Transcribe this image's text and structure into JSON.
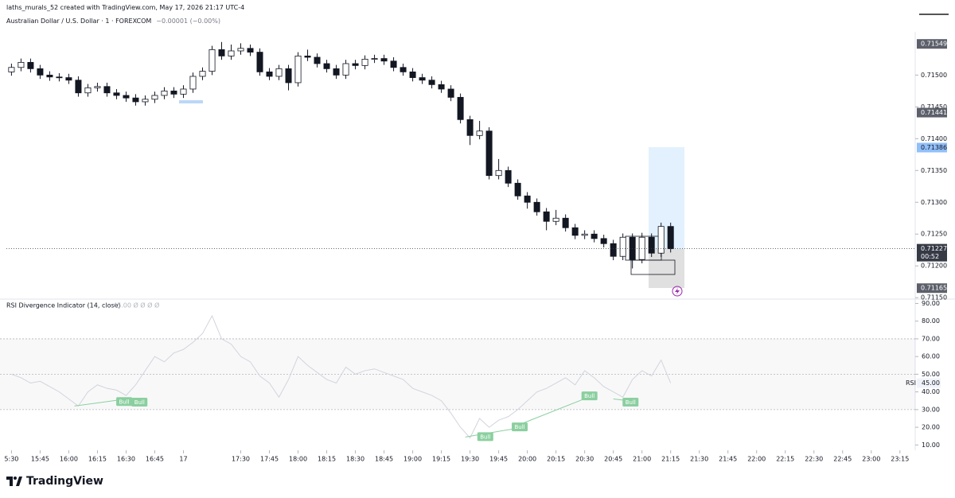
{
  "header": {
    "attribution": "laths_murals_52 created with TradingView.com, May 17, 2026 21:17 UTC-4",
    "symbol": "Australian Dollar / U.S. Dollar · 1 · FOREXCOM",
    "change": "−0.00001 (−0.00%)"
  },
  "chart_data": [
    {
      "type": "candlestick",
      "x": [
        0,
        5,
        10,
        15,
        20,
        25,
        30,
        35,
        40,
        45,
        50,
        55,
        60,
        65,
        70,
        75,
        80,
        85,
        90,
        95,
        100,
        105,
        110,
        115,
        120,
        125,
        130,
        135,
        140,
        145,
        150,
        155,
        160,
        165,
        170,
        175,
        180,
        185,
        190,
        195,
        200,
        205,
        210,
        215,
        220,
        225,
        230,
        235,
        240,
        245,
        250,
        255,
        260,
        265,
        270,
        275,
        280,
        285,
        290,
        295,
        300,
        305,
        310,
        315,
        320,
        325,
        330,
        335,
        340,
        345
      ],
      "open": [
        0.71505,
        0.71512,
        0.7152,
        0.7151,
        0.715,
        0.71497,
        0.71496,
        0.71492,
        0.71472,
        0.7148,
        0.71482,
        0.71472,
        0.71468,
        0.71464,
        0.71458,
        0.71462,
        0.71468,
        0.71475,
        0.7147,
        0.71478,
        0.71498,
        0.71506,
        0.7154,
        0.7153,
        0.71538,
        0.71542,
        0.71536,
        0.71505,
        0.71498,
        0.7151,
        0.71488,
        0.7153,
        0.71528,
        0.71518,
        0.7151,
        0.715,
        0.71518,
        0.71515,
        0.71525,
        0.71526,
        0.71522,
        0.71512,
        0.71505,
        0.71496,
        0.71492,
        0.71485,
        0.71478,
        0.71465,
        0.7143,
        0.71405,
        0.71412,
        0.71342,
        0.7135,
        0.7133,
        0.7131,
        0.713,
        0.71285,
        0.7127,
        0.71275,
        0.7126,
        0.71248,
        0.7125,
        0.71243,
        0.71235,
        0.71215,
        0.71245,
        0.7121,
        0.71245,
        0.7122,
        0.71262
      ],
      "high": [
        0.71518,
        0.71526,
        0.71526,
        0.71516,
        0.71506,
        0.71503,
        0.71502,
        0.71498,
        0.71486,
        0.71488,
        0.71488,
        0.71478,
        0.71474,
        0.7147,
        0.71468,
        0.71474,
        0.71481,
        0.71481,
        0.71484,
        0.71504,
        0.71512,
        0.71546,
        0.71552,
        0.71548,
        0.7155,
        0.71548,
        0.71542,
        0.71511,
        0.71516,
        0.71516,
        0.71536,
        0.7154,
        0.71534,
        0.71524,
        0.71516,
        0.71524,
        0.71524,
        0.71531,
        0.71532,
        0.71532,
        0.71528,
        0.71518,
        0.71511,
        0.71502,
        0.71498,
        0.71491,
        0.71484,
        0.71471,
        0.71436,
        0.71428,
        0.71418,
        0.71368,
        0.71356,
        0.71336,
        0.71316,
        0.71306,
        0.71291,
        0.71288,
        0.71281,
        0.71266,
        0.71256,
        0.71256,
        0.71249,
        0.71241,
        0.71251,
        0.71251,
        0.71252,
        0.71251,
        0.71268,
        0.71268
      ],
      "low": [
        0.71499,
        0.71506,
        0.71504,
        0.71494,
        0.71491,
        0.7149,
        0.71486,
        0.71466,
        0.71466,
        0.71474,
        0.71466,
        0.71462,
        0.71458,
        0.71452,
        0.71452,
        0.71456,
        0.71462,
        0.71464,
        0.71464,
        0.71472,
        0.71492,
        0.715,
        0.71524,
        0.71524,
        0.71532,
        0.7153,
        0.71499,
        0.71492,
        0.71492,
        0.71476,
        0.71482,
        0.71522,
        0.71512,
        0.71504,
        0.71494,
        0.71494,
        0.71509,
        0.71509,
        0.71519,
        0.71516,
        0.71506,
        0.71499,
        0.7149,
        0.71486,
        0.71479,
        0.71472,
        0.71459,
        0.71424,
        0.7139,
        0.71399,
        0.71336,
        0.71336,
        0.71324,
        0.71304,
        0.7129,
        0.71279,
        0.71256,
        0.71264,
        0.71254,
        0.71242,
        0.71242,
        0.71237,
        0.71229,
        0.71209,
        0.71209,
        0.71196,
        0.71204,
        0.71214,
        0.71214,
        0.71221
      ],
      "close": [
        0.71512,
        0.7152,
        0.7151,
        0.715,
        0.71497,
        0.71496,
        0.71492,
        0.71472,
        0.7148,
        0.71482,
        0.71472,
        0.71468,
        0.71464,
        0.71458,
        0.71462,
        0.71468,
        0.71475,
        0.7147,
        0.71478,
        0.71498,
        0.71506,
        0.7154,
        0.7153,
        0.71538,
        0.71542,
        0.71536,
        0.71505,
        0.71498,
        0.7151,
        0.71488,
        0.7153,
        0.71528,
        0.71518,
        0.7151,
        0.715,
        0.71518,
        0.71515,
        0.71525,
        0.71526,
        0.71522,
        0.71512,
        0.71505,
        0.71496,
        0.71492,
        0.71485,
        0.71478,
        0.71465,
        0.7143,
        0.71405,
        0.71412,
        0.71342,
        0.7135,
        0.7133,
        0.7131,
        0.713,
        0.71285,
        0.7127,
        0.71275,
        0.7126,
        0.71248,
        0.7125,
        0.71243,
        0.71235,
        0.71215,
        0.71245,
        0.7121,
        0.71245,
        0.7122,
        0.71262,
        0.71227
      ],
      "up_color": "#ffffff",
      "down_color": "#131722",
      "wick_color": "#131722",
      "xlim": [
        -6,
        473
      ],
      "ylim": [
        0.71149,
        0.71568
      ],
      "yticks": [
        {
          "value": 0.7115,
          "label": "0.71150"
        },
        {
          "value": 0.712,
          "label": "0.71200"
        },
        {
          "value": 0.7125,
          "label": "0.71250"
        },
        {
          "value": 0.713,
          "label": "0.71300"
        },
        {
          "value": 0.7135,
          "label": "0.71350"
        },
        {
          "value": 0.714,
          "label": "0.71400"
        },
        {
          "value": 0.7145,
          "label": "0.71450"
        },
        {
          "value": 0.715,
          "label": "0.71500"
        }
      ],
      "xticks": [
        {
          "value": 0,
          "label": "5:30"
        },
        {
          "value": 15,
          "label": "15:45"
        },
        {
          "value": 30,
          "label": "16:00"
        },
        {
          "value": 45,
          "label": "16:15"
        },
        {
          "value": 60,
          "label": "16:30"
        },
        {
          "value": 75,
          "label": "16:45"
        },
        {
          "value": 90,
          "label": "17"
        },
        {
          "value": 120,
          "label": "17:30"
        },
        {
          "value": 135,
          "label": "17:45"
        },
        {
          "value": 150,
          "label": "18:00"
        },
        {
          "value": 165,
          "label": "18:15"
        },
        {
          "value": 180,
          "label": "18:30"
        },
        {
          "value": 195,
          "label": "18:45"
        },
        {
          "value": 210,
          "label": "19:00"
        },
        {
          "value": 225,
          "label": "19:15"
        },
        {
          "value": 240,
          "label": "19:30"
        },
        {
          "value": 255,
          "label": "19:45"
        },
        {
          "value": 270,
          "label": "20:00"
        },
        {
          "value": 285,
          "label": "20:15"
        },
        {
          "value": 300,
          "label": "20:30"
        },
        {
          "value": 315,
          "label": "20:45"
        },
        {
          "value": 330,
          "label": "21:00"
        },
        {
          "value": 345,
          "label": "21:15"
        },
        {
          "value": 360,
          "label": "21:30"
        },
        {
          "value": 375,
          "label": "21:45"
        },
        {
          "value": 390,
          "label": "22:00"
        },
        {
          "value": 405,
          "label": "22:15"
        },
        {
          "value": 420,
          "label": "22:30"
        },
        {
          "value": 435,
          "label": "22:45"
        },
        {
          "value": 450,
          "label": "23:00"
        },
        {
          "value": 465,
          "label": "23:15"
        }
      ],
      "price_labels": [
        {
          "value": 0.71549,
          "label": "0.71549",
          "color": "#5d606b"
        },
        {
          "value": 0.71441,
          "label": "0.71441",
          "color": "#5d606b"
        },
        {
          "value": 0.71386,
          "label": "0.71386",
          "color": "#90bff9"
        },
        {
          "value": 0.71227,
          "label": "0.71227",
          "sub": "00:52",
          "color": "#363a45"
        },
        {
          "value": 0.71165,
          "label": "0.71165",
          "color": "#5d606b"
        }
      ]
    },
    {
      "type": "line",
      "title": "RSI Divergence Indicator (14, close)",
      "legend_values": "45.00  Ø  Ø  Ø  Ø",
      "x": [
        0,
        5,
        10,
        15,
        20,
        25,
        30,
        35,
        40,
        45,
        50,
        55,
        60,
        65,
        70,
        75,
        80,
        85,
        90,
        95,
        100,
        105,
        110,
        115,
        120,
        125,
        130,
        135,
        140,
        145,
        150,
        155,
        160,
        165,
        170,
        175,
        180,
        185,
        190,
        195,
        200,
        205,
        210,
        215,
        220,
        225,
        230,
        235,
        240,
        245,
        250,
        255,
        260,
        265,
        270,
        275,
        280,
        285,
        290,
        295,
        300,
        305,
        310,
        315,
        320,
        325,
        330,
        335,
        340,
        345
      ],
      "values": [
        50,
        48,
        45,
        46,
        43,
        40,
        36,
        32,
        40,
        44,
        42,
        41,
        38,
        44,
        52,
        60,
        57,
        62,
        64,
        68,
        73,
        83,
        70,
        67,
        60,
        57,
        49,
        45,
        37,
        47,
        60,
        55,
        51,
        47,
        45,
        54,
        50,
        52,
        53,
        51,
        49,
        47,
        42,
        40,
        38,
        35,
        28,
        20,
        14,
        25,
        20,
        24,
        26,
        30,
        35,
        40,
        42,
        45,
        48,
        44,
        52,
        48,
        43,
        40,
        37,
        47,
        52,
        49,
        58,
        45
      ],
      "color": "#d1d4dc",
      "xlim": [
        -6,
        473
      ],
      "ylim": [
        7,
        92
      ],
      "yticks": [
        {
          "value": 10,
          "label": "10.00"
        },
        {
          "value": 20,
          "label": "20.00"
        },
        {
          "value": 30,
          "label": "30.00"
        },
        {
          "value": 40,
          "label": "40.00"
        },
        {
          "value": 50,
          "label": "50.00"
        },
        {
          "value": 60,
          "label": "60.00"
        },
        {
          "value": 70,
          "label": "70.00"
        },
        {
          "value": 80,
          "label": "80.00"
        },
        {
          "value": 90,
          "label": "90.00"
        }
      ],
      "levels": [
        70,
        50,
        30
      ],
      "last": {
        "name": "RSI",
        "value": 45,
        "label": "45.00"
      },
      "divergences": [
        {
          "x": [
            33,
            60
          ],
          "y": [
            32,
            36
          ]
        },
        {
          "x": [
            237.5,
            265
          ],
          "y": [
            14.5,
            19.5
          ]
        },
        {
          "x": [
            267,
            302
          ],
          "y": [
            22,
            37
          ]
        },
        {
          "x": [
            315,
            323
          ],
          "y": [
            36,
            35
          ]
        }
      ],
      "signals": [
        {
          "label": "Bull",
          "x": 59,
          "y": 34.3
        },
        {
          "label": "Bull",
          "x": 67,
          "y": 34
        },
        {
          "label": "Bull",
          "x": 248,
          "y": 14.5
        },
        {
          "label": "Bull",
          "x": 266,
          "y": 20
        },
        {
          "label": "Bull",
          "x": 302.5,
          "y": 37.5
        },
        {
          "label": "Bull",
          "x": 324,
          "y": 34
        }
      ],
      "signal_color": "#8bcf9f"
    }
  ],
  "brand": "TradingView"
}
